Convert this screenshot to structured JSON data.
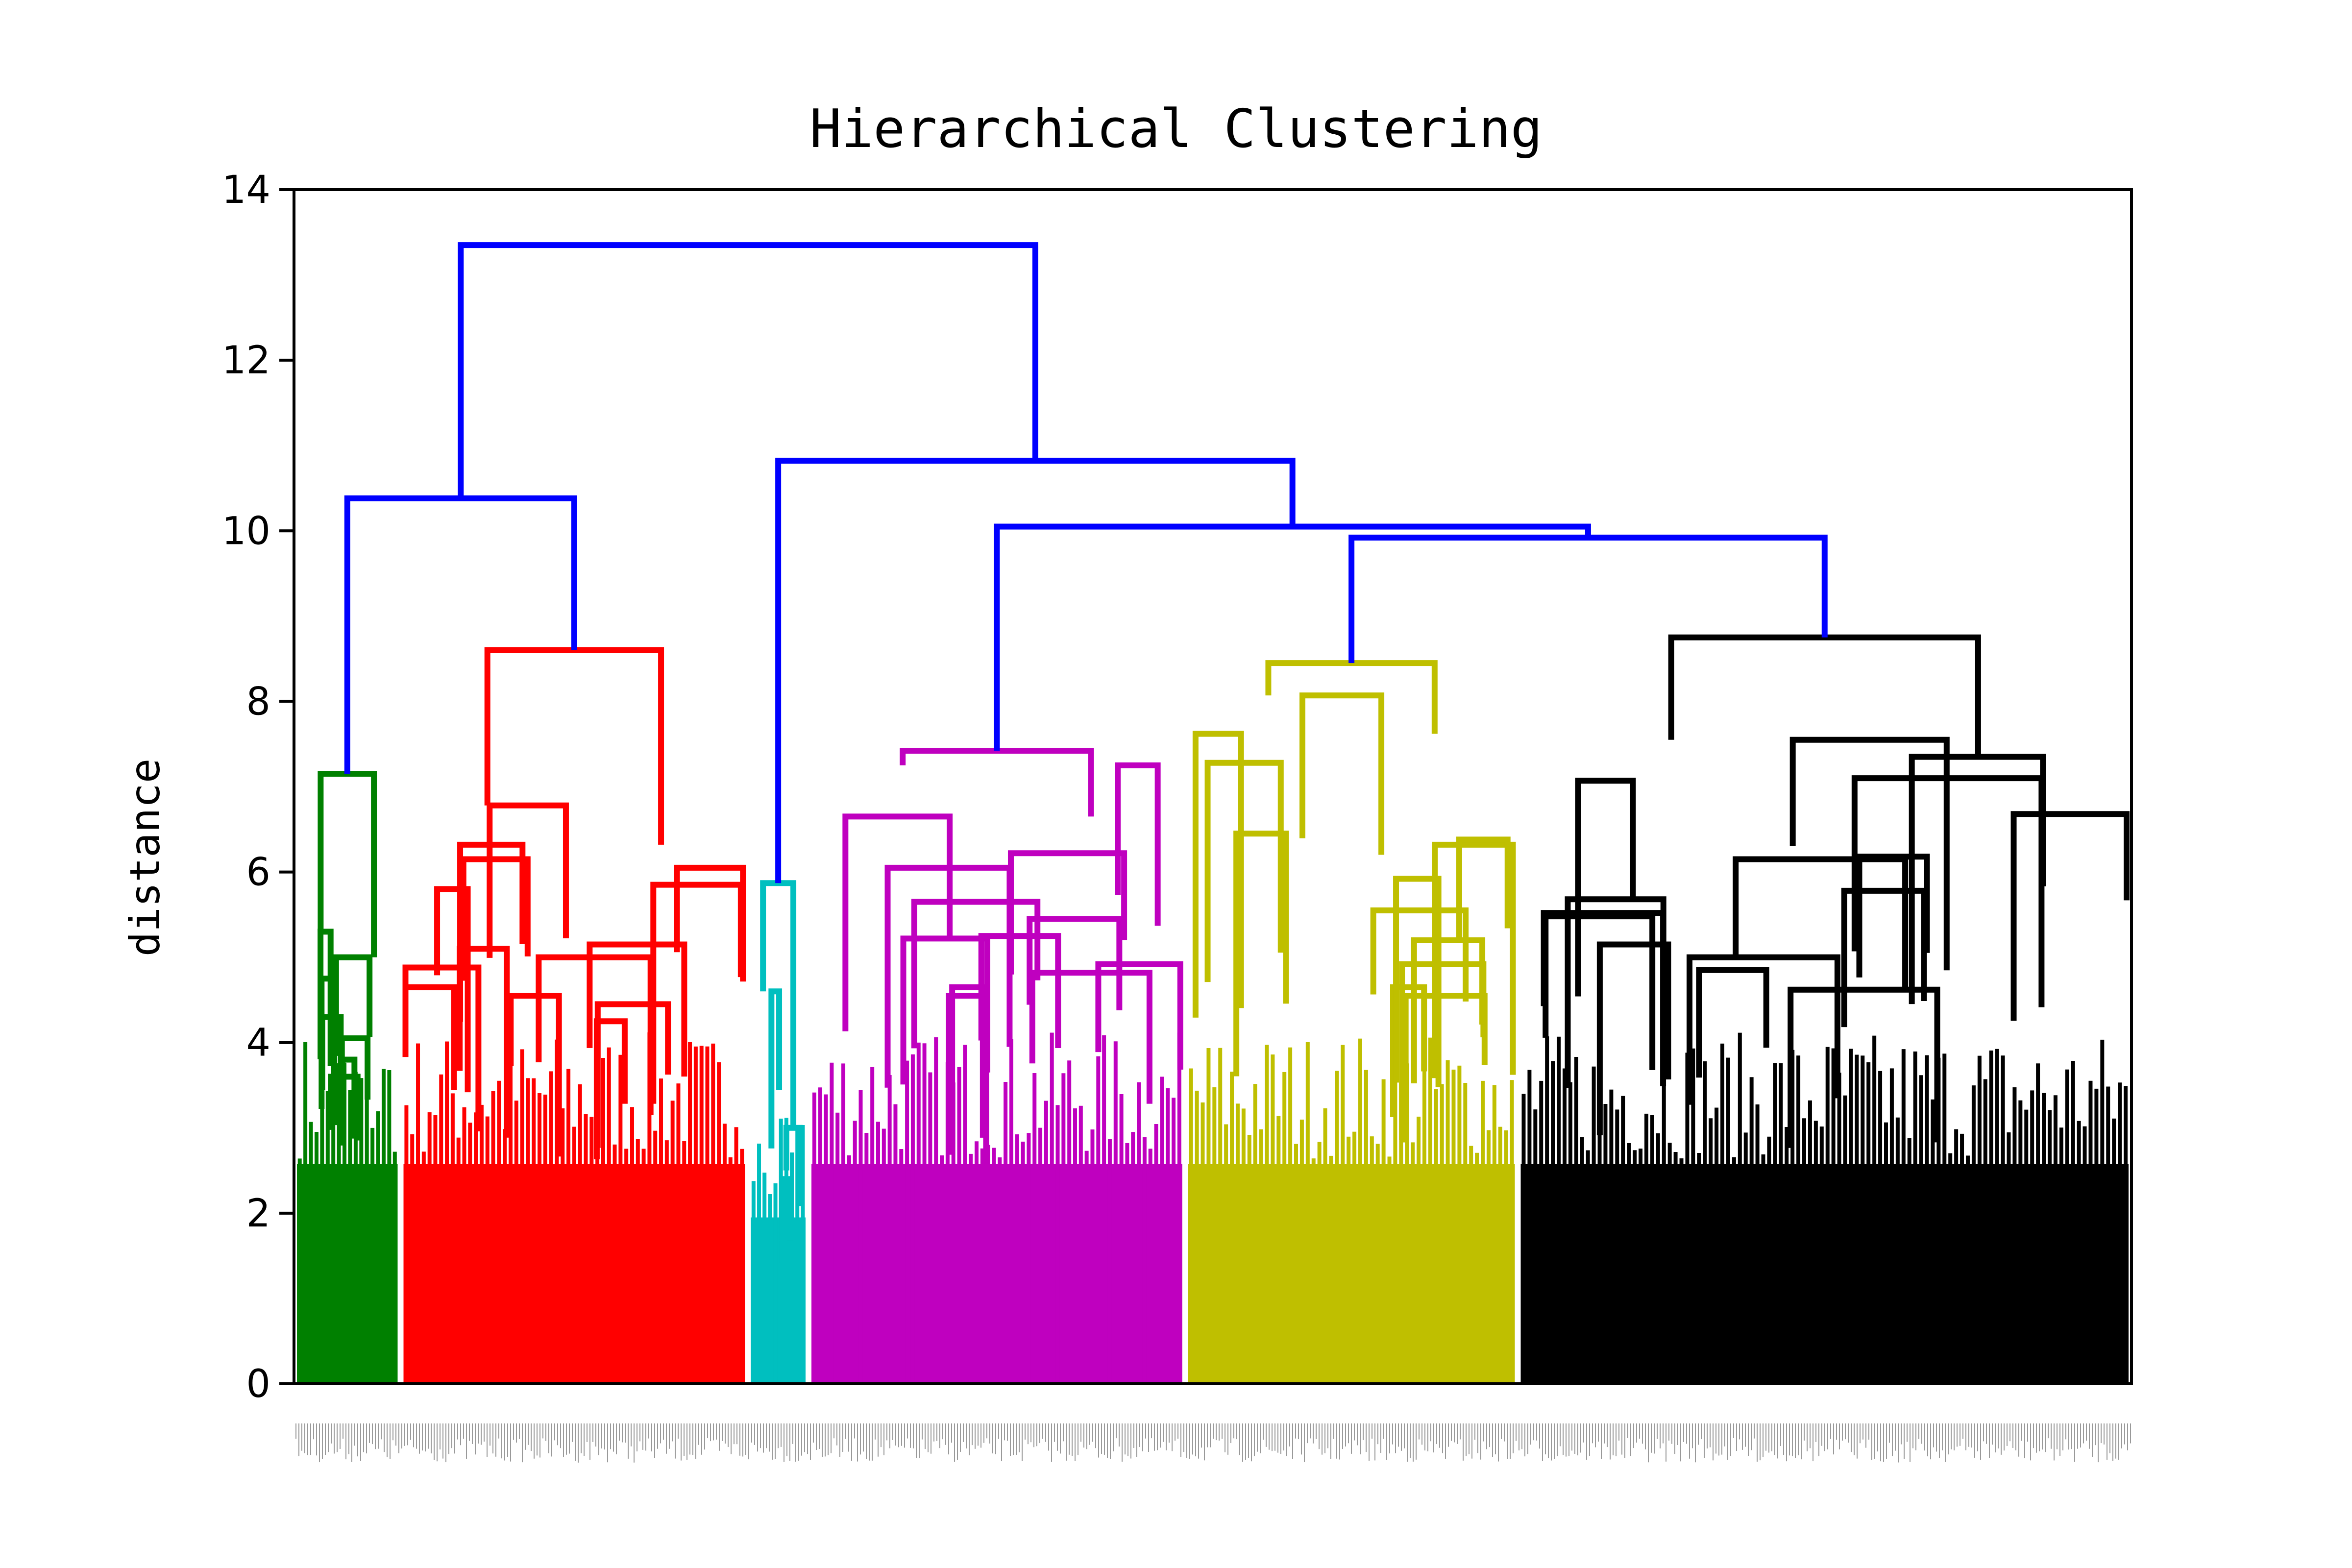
{
  "chart_data": {
    "type": "dendrogram",
    "title": "Hierarchical Clustering",
    "xlabel": "",
    "ylabel": "distance",
    "ylim": [
      0,
      14
    ],
    "yticks": [
      0,
      2,
      4,
      6,
      8,
      10,
      12,
      14
    ],
    "grid": false,
    "leaf_count_approx": 520,
    "link_color": "#0000ff",
    "clusters": [
      {
        "color": "#008000",
        "leaf_range": [
          0,
          0.058
        ],
        "root_height": 7.15,
        "merges": [
          {
            "h": 5.3
          },
          {
            "h": 5.0
          },
          {
            "h": 4.75
          },
          {
            "h": 4.3
          },
          {
            "h": 4.05
          },
          {
            "h": 3.8
          },
          {
            "h": 3.6
          }
        ]
      },
      {
        "color": "#ff0000",
        "leaf_range": [
          0.058,
          0.247
        ],
        "root_height": 8.6,
        "merges": [
          {
            "h": 6.78
          },
          {
            "h": 6.32
          },
          {
            "h": 6.15
          },
          {
            "h": 6.05
          },
          {
            "h": 5.85
          },
          {
            "h": 5.8
          },
          {
            "h": 5.15
          },
          {
            "h": 5.1
          },
          {
            "h": 5.0
          },
          {
            "h": 4.88
          },
          {
            "h": 4.65
          },
          {
            "h": 4.55
          },
          {
            "h": 4.45
          },
          {
            "h": 4.25
          }
        ]
      },
      {
        "color": "#00bfbf",
        "leaf_range": [
          0.247,
          0.28
        ],
        "root_height": 5.87,
        "merges": [
          {
            "h": 4.6
          },
          {
            "h": 3.0
          },
          {
            "h": 2.4
          }
        ]
      },
      {
        "color": "#bf00bf",
        "leaf_range": [
          0.28,
          0.485
        ],
        "root_height": 7.42,
        "merges": [
          {
            "h": 7.25
          },
          {
            "h": 6.65
          },
          {
            "h": 6.22
          },
          {
            "h": 6.05
          },
          {
            "h": 5.65
          },
          {
            "h": 5.45
          },
          {
            "h": 5.25
          },
          {
            "h": 5.22
          },
          {
            "h": 4.92
          },
          {
            "h": 4.82
          },
          {
            "h": 4.65
          },
          {
            "h": 4.55
          }
        ]
      },
      {
        "color": "#bfbf00",
        "leaf_range": [
          0.485,
          0.666
        ],
        "root_height": 8.45,
        "merges": [
          {
            "h": 8.07
          },
          {
            "h": 7.62
          },
          {
            "h": 7.28
          },
          {
            "h": 6.45
          },
          {
            "h": 6.38
          },
          {
            "h": 6.32
          },
          {
            "h": 5.92
          },
          {
            "h": 5.55
          },
          {
            "h": 5.2
          },
          {
            "h": 4.92
          },
          {
            "h": 4.65
          },
          {
            "h": 4.55
          }
        ]
      },
      {
        "color": "#000000",
        "leaf_range": [
          0.666,
          1.0
        ],
        "root_height": 8.75,
        "merges": [
          {
            "h": 7.55
          },
          {
            "h": 7.35
          },
          {
            "h": 7.1
          },
          {
            "h": 7.07
          },
          {
            "h": 6.68
          },
          {
            "h": 6.18
          },
          {
            "h": 6.15
          },
          {
            "h": 5.78
          },
          {
            "h": 5.68
          },
          {
            "h": 5.52
          },
          {
            "h": 5.48
          },
          {
            "h": 5.15
          },
          {
            "h": 5.0
          },
          {
            "h": 4.85
          },
          {
            "h": 4.62
          }
        ]
      }
    ],
    "upper_links": [
      {
        "h": 13.35,
        "joins": [
          "A",
          "B"
        ]
      },
      {
        "h": 10.38,
        "joins": [
          "green",
          "red"
        ],
        "name": "A"
      },
      {
        "h": 10.82,
        "joins": [
          "cyan",
          "C"
        ],
        "name": "B"
      },
      {
        "h": 10.05,
        "joins": [
          "magenta",
          "D"
        ],
        "name": "C"
      },
      {
        "h": 9.92,
        "joins": [
          "yellow",
          "black"
        ],
        "name": "D"
      }
    ]
  }
}
